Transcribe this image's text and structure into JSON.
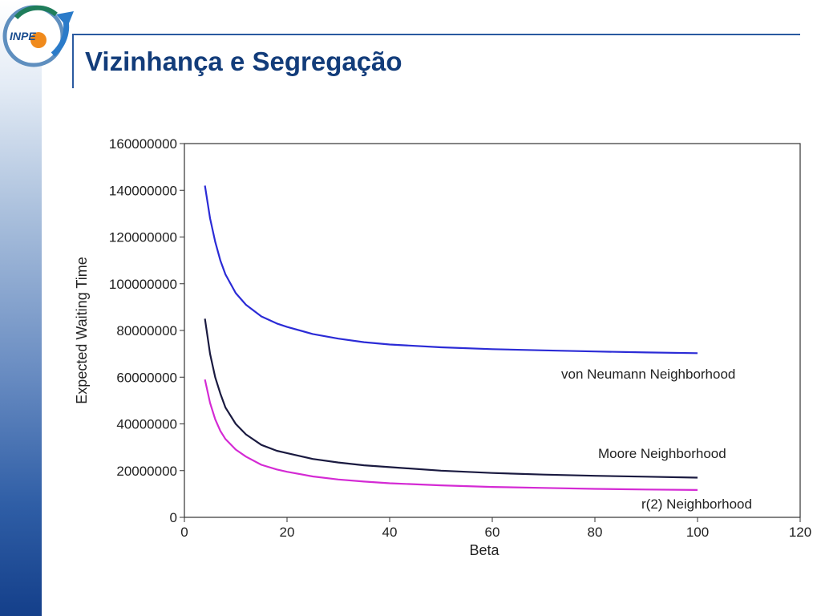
{
  "slide": {
    "title": "Vizinhança e Segregação",
    "logo_text": "INPE"
  },
  "colors": {
    "title": "#123c7a",
    "rule": "#2a5aa0",
    "von_neumann": "#2b2bd6",
    "moore": "#1a1a40",
    "r2": "#d42ad4"
  },
  "chart_data": {
    "type": "line",
    "xlabel": "Beta",
    "ylabel": "Expected Waiting Time",
    "xlim": [
      0,
      120
    ],
    "ylim": [
      0,
      160000000
    ],
    "xticks": [
      0,
      20,
      40,
      60,
      80,
      100,
      120
    ],
    "yticks": [
      0,
      20000000,
      40000000,
      60000000,
      80000000,
      100000000,
      120000000,
      140000000,
      160000000
    ],
    "grid": false,
    "series": [
      {
        "name": "von Neumann Neighborhood",
        "color": "#2b2bd6",
        "x": [
          4,
          5,
          6,
          7,
          8,
          10,
          12,
          15,
          18,
          20,
          25,
          30,
          35,
          40,
          50,
          60,
          70,
          80,
          90,
          100
        ],
        "y": [
          142000000,
          128000000,
          118000000,
          110000000,
          104000000,
          96000000,
          91000000,
          86000000,
          83000000,
          81500000,
          78500000,
          76500000,
          75000000,
          74000000,
          72800000,
          72000000,
          71500000,
          71000000,
          70600000,
          70300000
        ]
      },
      {
        "name": "Moore Neighborhood",
        "color": "#1a1a40",
        "x": [
          4,
          5,
          6,
          7,
          8,
          10,
          12,
          15,
          18,
          20,
          25,
          30,
          35,
          40,
          50,
          60,
          70,
          80,
          90,
          100
        ],
        "y": [
          85000000,
          70000000,
          60000000,
          53000000,
          47000000,
          40000000,
          35500000,
          31000000,
          28500000,
          27500000,
          25000000,
          23500000,
          22300000,
          21500000,
          20000000,
          19000000,
          18300000,
          17800000,
          17400000,
          17000000
        ]
      },
      {
        "name": "r(2) Neighborhood",
        "color": "#d42ad4",
        "x": [
          4,
          5,
          6,
          7,
          8,
          10,
          12,
          15,
          18,
          20,
          25,
          30,
          35,
          40,
          50,
          60,
          70,
          80,
          90,
          100
        ],
        "y": [
          59000000,
          49000000,
          42000000,
          37000000,
          33500000,
          29000000,
          26000000,
          22500000,
          20500000,
          19500000,
          17500000,
          16200000,
          15300000,
          14600000,
          13700000,
          13000000,
          12600000,
          12200000,
          11900000,
          11700000
        ]
      }
    ]
  }
}
